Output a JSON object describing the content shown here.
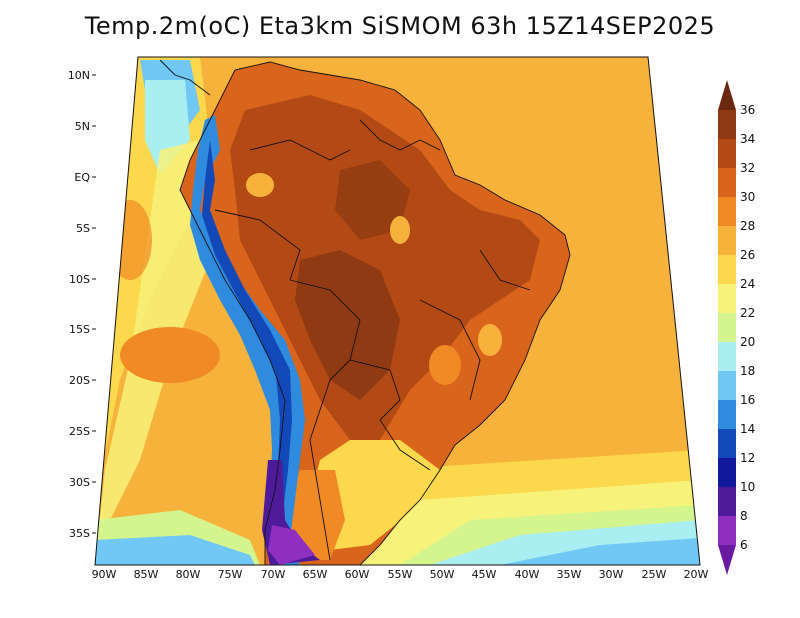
{
  "title": "Temp.2m(oC) Eta3km SiSMOM 63h 15Z14SEP2025",
  "lat_labels": [
    "10N",
    "5N",
    "EQ",
    "5S",
    "10S",
    "15S",
    "20S",
    "25S",
    "30S",
    "35S"
  ],
  "lon_labels": [
    "90W",
    "85W",
    "80W",
    "75W",
    "70W",
    "65W",
    "60W",
    "55W",
    "50W",
    "45W",
    "40W",
    "35W",
    "30W",
    "25W",
    "20W"
  ],
  "colorbar": {
    "labels": [
      "36",
      "34",
      "32",
      "30",
      "28",
      "26",
      "24",
      "22",
      "20",
      "18",
      "16",
      "14",
      "12",
      "10",
      "8",
      "6"
    ],
    "colors": [
      "#6b2a10",
      "#8f3a12",
      "#b34a15",
      "#d9641c",
      "#f08a24",
      "#f6b23a",
      "#fbd84c",
      "#f7f27a",
      "#d4f48e",
      "#a9eef0",
      "#71c8f4",
      "#2f8bde",
      "#1248b8",
      "#11189a",
      "#4d1b9a",
      "#8f2fc0",
      "#6a1aa0"
    ]
  }
}
